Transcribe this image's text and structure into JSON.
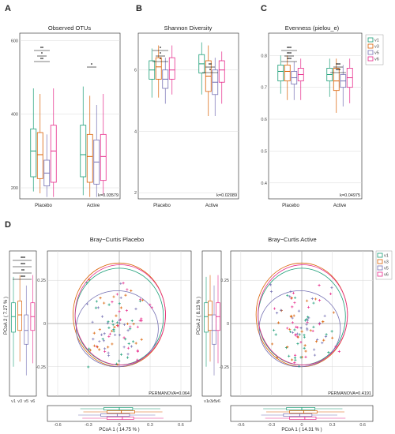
{
  "colors": {
    "v1": "#1b9e77",
    "v3": "#d95f02",
    "v5": "#7570b3",
    "v6": "#e7298a"
  },
  "legend": [
    "v1",
    "v3",
    "v5",
    "v6"
  ],
  "panel_labels": {
    "A": "A",
    "B": "B",
    "C": "C",
    "D": "D"
  },
  "chart_data": [
    {
      "id": "A",
      "type": "box",
      "title": "Observed OTUs",
      "categories": [
        "Placebo",
        "Active"
      ],
      "series": [
        "v1",
        "v3",
        "v5",
        "v6"
      ],
      "ylim": [
        170,
        620
      ],
      "yticks": [
        200,
        400,
        600
      ],
      "annotation": "k=0.03579",
      "sig": [
        "**",
        "*",
        "**",
        "*"
      ],
      "boxes": {
        "Placebo": [
          [
            230,
            300,
            360,
            190,
            470
          ],
          [
            225,
            290,
            350,
            185,
            455
          ],
          [
            205,
            240,
            275,
            175,
            345
          ],
          [
            215,
            300,
            370,
            175,
            470
          ]
        ],
        "Active": [
          [
            230,
            290,
            370,
            180,
            475
          ],
          [
            215,
            285,
            345,
            175,
            450
          ],
          [
            210,
            270,
            330,
            175,
            425
          ],
          [
            220,
            285,
            345,
            180,
            455
          ]
        ]
      }
    },
    {
      "id": "B",
      "type": "box",
      "title": "Shannon Diversity",
      "categories": [
        "Placebo",
        "Active"
      ],
      "series": [
        "v1",
        "v3",
        "v5",
        "v6"
      ],
      "ylim": [
        1.8,
        7.2
      ],
      "yticks": [
        2,
        4,
        6
      ],
      "annotation": "k=0.02089",
      "sig": [
        "*",
        "*",
        "*",
        "**",
        "*"
      ],
      "boxes": {
        "Placebo": [
          [
            5.7,
            6.0,
            6.3,
            5.1,
            6.7
          ],
          [
            5.7,
            6.1,
            6.4,
            5.1,
            6.8
          ],
          [
            5.4,
            5.7,
            6.0,
            4.9,
            6.4
          ],
          [
            5.7,
            6.0,
            6.4,
            5.2,
            6.8
          ]
        ],
        "Active": [
          [
            5.9,
            6.2,
            6.5,
            5.2,
            6.9
          ],
          [
            5.3,
            5.8,
            6.3,
            4.5,
            6.8
          ],
          [
            5.2,
            5.6,
            6.0,
            4.5,
            6.4
          ],
          [
            5.6,
            6.0,
            6.3,
            4.9,
            6.6
          ]
        ]
      }
    },
    {
      "id": "C",
      "type": "box",
      "title": "Evenness (pielou_e)",
      "categories": [
        "Placebo",
        "Active"
      ],
      "series": [
        "v1",
        "v3",
        "v5",
        "v6"
      ],
      "ylim": [
        0.35,
        0.87
      ],
      "yticks": [
        0.4,
        0.5,
        0.6,
        0.7,
        0.8
      ],
      "annotation": "k=0.04975",
      "sig": [
        "***",
        "***",
        "***",
        "***",
        "***"
      ],
      "boxes": {
        "Placebo": [
          [
            0.72,
            0.75,
            0.77,
            0.68,
            0.8
          ],
          [
            0.72,
            0.75,
            0.77,
            0.66,
            0.8
          ],
          [
            0.71,
            0.73,
            0.75,
            0.66,
            0.78
          ],
          [
            0.72,
            0.74,
            0.76,
            0.66,
            0.79
          ]
        ],
        "Active": [
          [
            0.72,
            0.74,
            0.76,
            0.67,
            0.79
          ],
          [
            0.69,
            0.72,
            0.76,
            0.62,
            0.79
          ],
          [
            0.7,
            0.72,
            0.74,
            0.64,
            0.77
          ],
          [
            0.7,
            0.73,
            0.76,
            0.65,
            0.79
          ]
        ]
      }
    },
    {
      "id": "D1",
      "type": "pcoa",
      "title": "Bray−Curtis Placebo",
      "xlabel": "PCoA 1 ( 14.75 % )",
      "ylabel": "PCoA 2 ( 7.27 % )",
      "xticks": [
        -0.6,
        -0.3,
        0.0,
        0.3,
        0.6
      ],
      "yticks": [
        -0.25,
        0.0,
        0.25
      ],
      "annotation": "PERMANOVA=0.064",
      "sig": [
        "***",
        "***",
        "**",
        "***"
      ]
    },
    {
      "id": "D2",
      "type": "pcoa",
      "title": "Bray−Curtis Active",
      "xlabel": "PCoA 1 ( 14.31 % )",
      "ylabel": "PCoA 2 ( 8.13 % )",
      "xticks": [
        -0.6,
        -0.3,
        0.0,
        0.3,
        0.6
      ],
      "yticks": [
        -0.25,
        0.0,
        0.25
      ],
      "annotation": "PERMANOVA=0.4191"
    }
  ]
}
